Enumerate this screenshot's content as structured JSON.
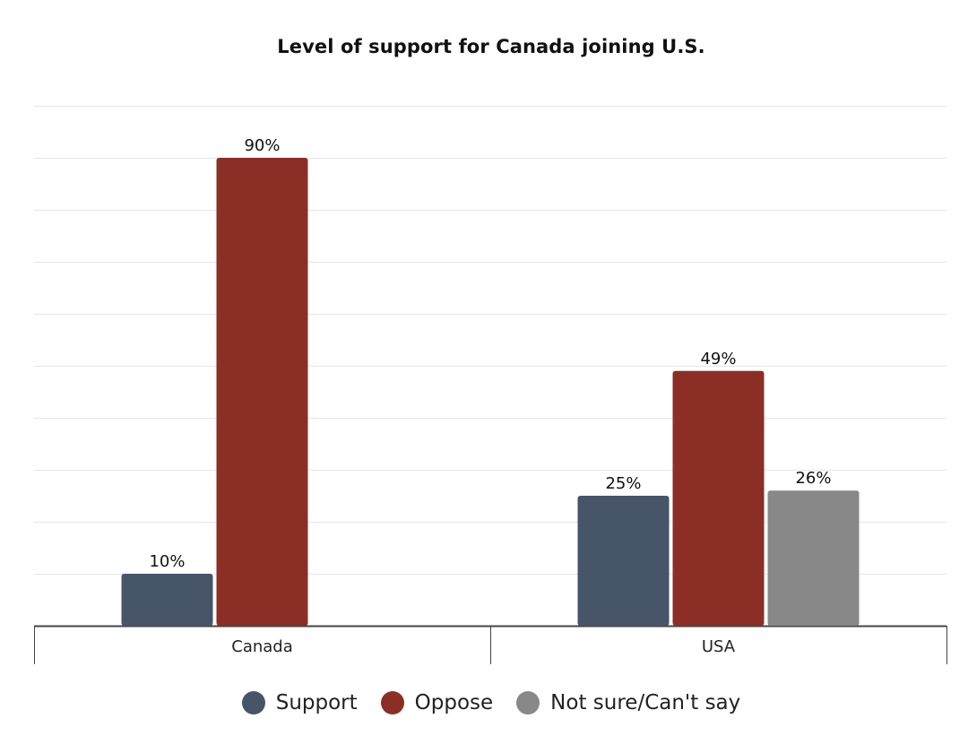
{
  "chart_data": {
    "type": "bar",
    "title": "Level of support for Canada joining U.S.",
    "xlabel": "",
    "ylabel": "",
    "ylim": [
      0,
      100
    ],
    "grid": true,
    "legend_position": "bottom",
    "categories": [
      "Canada",
      "USA"
    ],
    "series": [
      {
        "name": "Support",
        "color": "#475569",
        "values": [
          10,
          25
        ],
        "labels": [
          "10%",
          "25%"
        ]
      },
      {
        "name": "Oppose",
        "color": "#8b2f26",
        "values": [
          90,
          49
        ],
        "labels": [
          "90%",
          "49%"
        ]
      },
      {
        "name": "Not sure/Can't say",
        "color": "#888888",
        "values": [
          null,
          26
        ],
        "labels": [
          null,
          "26%"
        ]
      }
    ]
  }
}
